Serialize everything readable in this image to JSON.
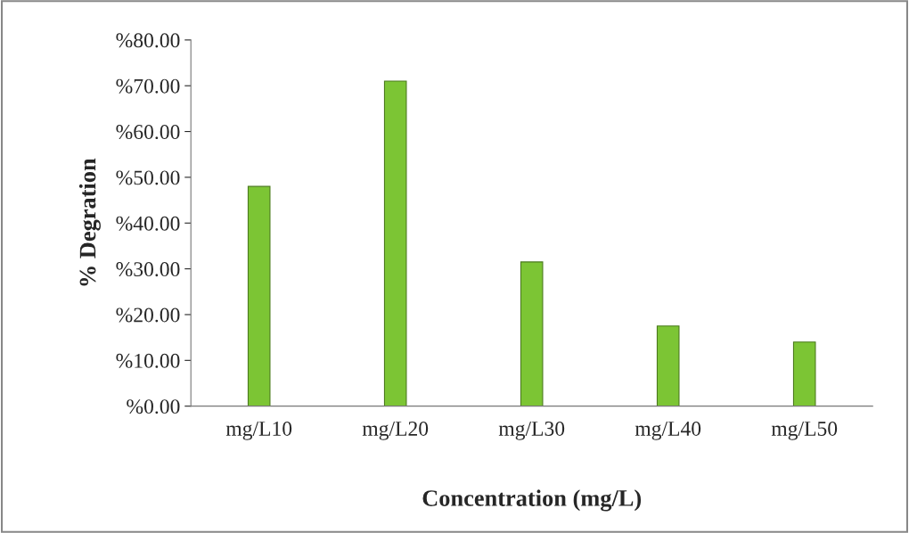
{
  "chart_data": {
    "type": "bar",
    "xlabel": "Concentration (mg/L)",
    "ylabel": "% Degration",
    "categories": [
      "mg/L10",
      "mg/L20",
      "mg/L30",
      "mg/L40",
      "mg/L50"
    ],
    "values": [
      48,
      71,
      31.5,
      17.5,
      14
    ],
    "color": "#7cc534",
    "ylim": [
      0,
      80
    ],
    "yticks": [
      {
        "value": 0,
        "label": "%0.00"
      },
      {
        "value": 10,
        "label": "%10.00"
      },
      {
        "value": 20,
        "label": "%20.00"
      },
      {
        "value": 30,
        "label": "%30.00"
      },
      {
        "value": 40,
        "label": "%40.00"
      },
      {
        "value": 50,
        "label": "%50.00"
      },
      {
        "value": 60,
        "label": "%60.00"
      },
      {
        "value": 70,
        "label": "%70.00"
      },
      {
        "value": 80,
        "label": "%80.00"
      }
    ],
    "grid": false
  }
}
